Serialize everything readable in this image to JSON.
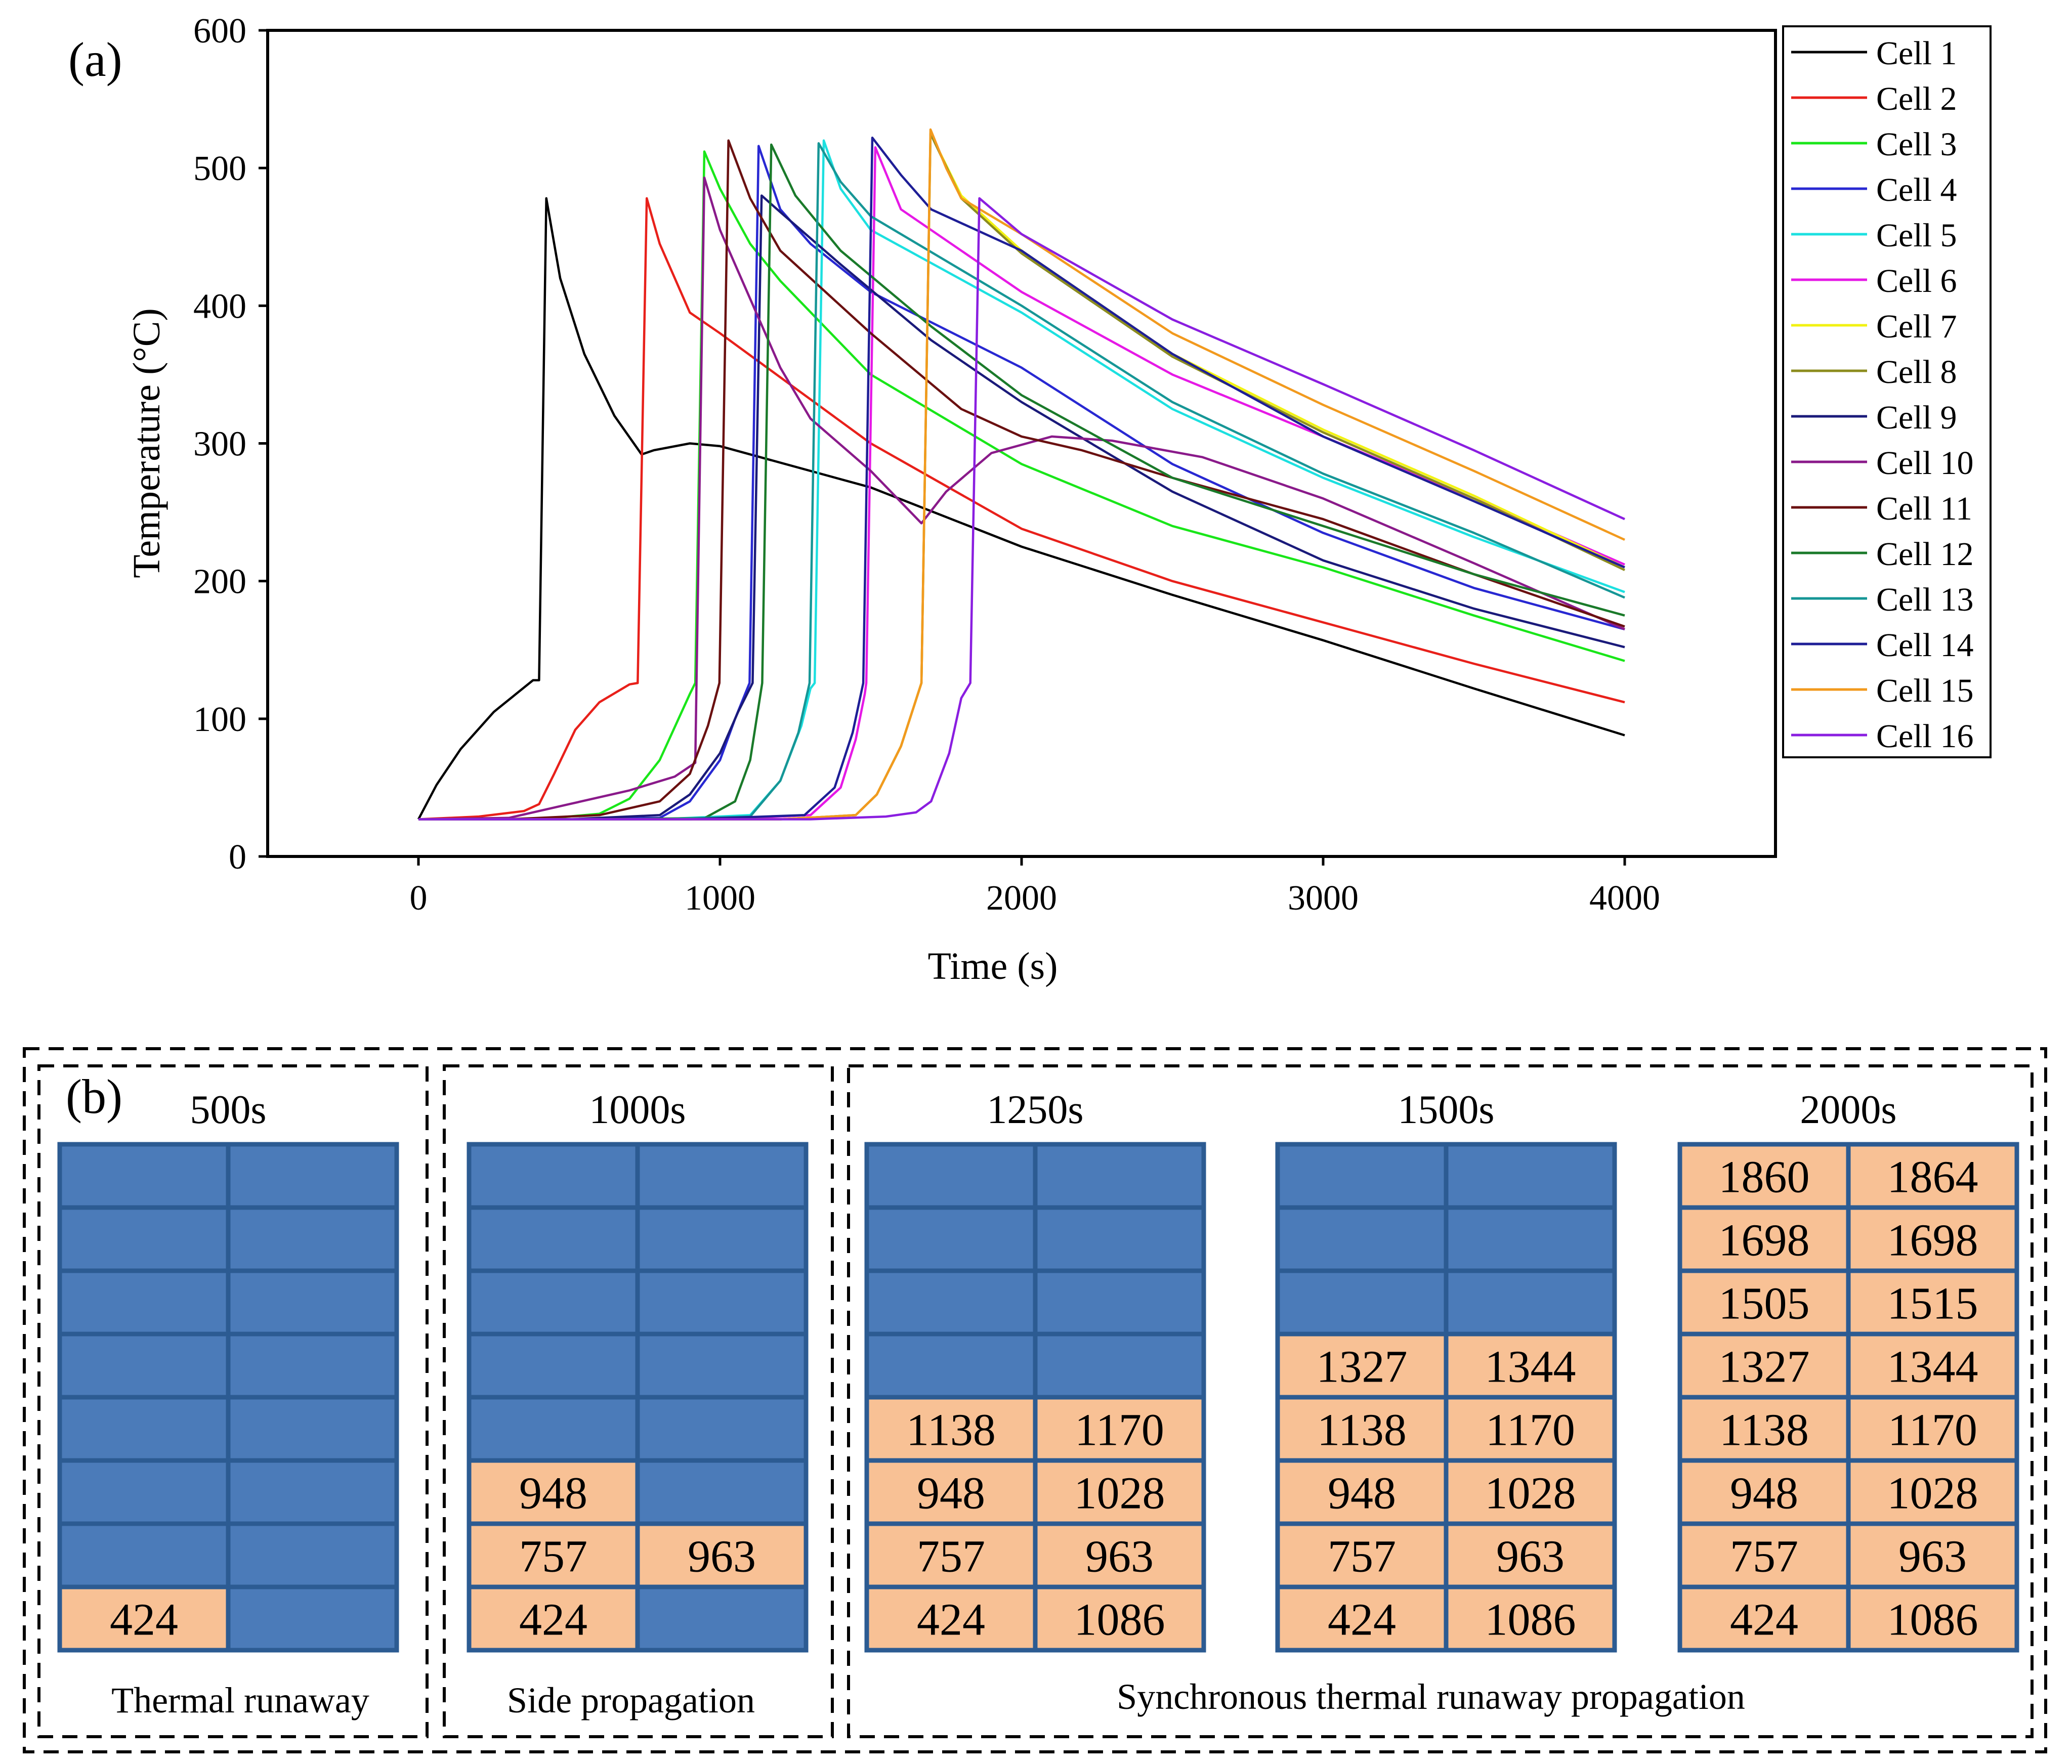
{
  "panel_a_label": "(a)",
  "panel_b_label": "(b)",
  "chart_data": {
    "type": "line",
    "title": "",
    "xlabel": "Time (s)",
    "ylabel": "Temperature (°C)",
    "xlim": [
      -500,
      4500
    ],
    "ylim": [
      0,
      600
    ],
    "xticks": [
      0,
      1000,
      2000,
      3000,
      4000
    ],
    "yticks": [
      0,
      100,
      200,
      300,
      400,
      500,
      600
    ],
    "grid": false,
    "legend_position": "right",
    "series": [
      {
        "name": "Cell 1",
        "color": "#000000",
        "points": [
          [
            0,
            27
          ],
          [
            60,
            52
          ],
          [
            140,
            78
          ],
          [
            250,
            105
          ],
          [
            380,
            128
          ],
          [
            400,
            128
          ],
          [
            424,
            478
          ],
          [
            470,
            420
          ],
          [
            550,
            365
          ],
          [
            650,
            320
          ],
          [
            740,
            292
          ],
          [
            780,
            295
          ],
          [
            900,
            300
          ],
          [
            1000,
            298
          ],
          [
            1500,
            268
          ],
          [
            2000,
            225
          ],
          [
            2500,
            190
          ],
          [
            3000,
            157
          ],
          [
            3500,
            122
          ],
          [
            4000,
            88
          ]
        ]
      },
      {
        "name": "Cell 2",
        "color": "#e8201a",
        "points": [
          [
            0,
            27
          ],
          [
            200,
            29
          ],
          [
            350,
            33
          ],
          [
            400,
            38
          ],
          [
            450,
            60
          ],
          [
            520,
            92
          ],
          [
            600,
            112
          ],
          [
            700,
            125
          ],
          [
            727,
            126
          ],
          [
            757,
            478
          ],
          [
            800,
            445
          ],
          [
            900,
            395
          ],
          [
            1000,
            380
          ],
          [
            1500,
            300
          ],
          [
            2000,
            238
          ],
          [
            2500,
            200
          ],
          [
            3000,
            170
          ],
          [
            3500,
            140
          ],
          [
            4000,
            112
          ]
        ]
      },
      {
        "name": "Cell 3",
        "color": "#19e619",
        "points": [
          [
            0,
            27
          ],
          [
            400,
            27
          ],
          [
            600,
            31
          ],
          [
            700,
            42
          ],
          [
            800,
            70
          ],
          [
            900,
            118
          ],
          [
            918,
            126
          ],
          [
            948,
            512
          ],
          [
            1000,
            485
          ],
          [
            1100,
            445
          ],
          [
            1200,
            418
          ],
          [
            1500,
            350
          ],
          [
            2000,
            285
          ],
          [
            2500,
            240
          ],
          [
            3000,
            210
          ],
          [
            3500,
            175
          ],
          [
            4000,
            142
          ]
        ]
      },
      {
        "name": "Cell 4",
        "color": "#2828d2",
        "points": [
          [
            0,
            27
          ],
          [
            500,
            27
          ],
          [
            800,
            28
          ],
          [
            900,
            40
          ],
          [
            1000,
            70
          ],
          [
            1050,
            100
          ],
          [
            1098,
            126
          ],
          [
            1128,
            516
          ],
          [
            1200,
            470
          ],
          [
            1300,
            445
          ],
          [
            1500,
            410
          ],
          [
            2000,
            355
          ],
          [
            2500,
            285
          ],
          [
            3000,
            235
          ],
          [
            3500,
            195
          ],
          [
            4000,
            165
          ]
        ]
      },
      {
        "name": "Cell 5",
        "color": "#1ce0e0",
        "points": [
          [
            0,
            27
          ],
          [
            800,
            27
          ],
          [
            1100,
            30
          ],
          [
            1200,
            55
          ],
          [
            1270,
            95
          ],
          [
            1300,
            122
          ],
          [
            1314,
            126
          ],
          [
            1344,
            520
          ],
          [
            1400,
            485
          ],
          [
            1500,
            455
          ],
          [
            2000,
            395
          ],
          [
            2500,
            325
          ],
          [
            3000,
            275
          ],
          [
            3500,
            232
          ],
          [
            4000,
            192
          ]
        ]
      },
      {
        "name": "Cell 6",
        "color": "#e619e6",
        "points": [
          [
            0,
            27
          ],
          [
            1000,
            27
          ],
          [
            1300,
            30
          ],
          [
            1400,
            50
          ],
          [
            1450,
            85
          ],
          [
            1480,
            118
          ],
          [
            1485,
            126
          ],
          [
            1515,
            515
          ],
          [
            1600,
            470
          ],
          [
            2000,
            410
          ],
          [
            2500,
            350
          ],
          [
            3000,
            305
          ],
          [
            3500,
            260
          ],
          [
            4000,
            212
          ]
        ]
      },
      {
        "name": "Cell 7",
        "color": "#f2f212",
        "points": [
          [
            0,
            27
          ],
          [
            1200,
            27
          ],
          [
            1450,
            30
          ],
          [
            1520,
            45
          ],
          [
            1600,
            80
          ],
          [
            1668,
            126
          ],
          [
            1698,
            525
          ],
          [
            1800,
            480
          ],
          [
            2000,
            440
          ],
          [
            2500,
            365
          ],
          [
            3000,
            310
          ],
          [
            3500,
            262
          ],
          [
            4000,
            210
          ]
        ]
      },
      {
        "name": "Cell 8",
        "color": "#8c8c1e",
        "points": [
          [
            0,
            27
          ],
          [
            1200,
            27
          ],
          [
            1450,
            30
          ],
          [
            1520,
            45
          ],
          [
            1600,
            80
          ],
          [
            1668,
            126
          ],
          [
            1698,
            525
          ],
          [
            1800,
            478
          ],
          [
            2000,
            438
          ],
          [
            2500,
            363
          ],
          [
            3000,
            308
          ],
          [
            3500,
            260
          ],
          [
            4000,
            208
          ]
        ]
      },
      {
        "name": "Cell 9",
        "color": "#1a1a7a",
        "points": [
          [
            0,
            27
          ],
          [
            500,
            27
          ],
          [
            800,
            30
          ],
          [
            900,
            45
          ],
          [
            1000,
            75
          ],
          [
            1060,
            105
          ],
          [
            1108,
            126
          ],
          [
            1138,
            480
          ],
          [
            1200,
            468
          ],
          [
            1400,
            430
          ],
          [
            1700,
            375
          ],
          [
            2000,
            330
          ],
          [
            2500,
            265
          ],
          [
            3000,
            215
          ],
          [
            3500,
            180
          ],
          [
            4000,
            152
          ]
        ]
      },
      {
        "name": "Cell 10",
        "color": "#8a1a8a",
        "points": [
          [
            0,
            27
          ],
          [
            300,
            28
          ],
          [
            500,
            38
          ],
          [
            700,
            48
          ],
          [
            850,
            58
          ],
          [
            918,
            68
          ],
          [
            948,
            493
          ],
          [
            1000,
            455
          ],
          [
            1100,
            405
          ],
          [
            1200,
            355
          ],
          [
            1300,
            318
          ],
          [
            1500,
            280
          ],
          [
            1668,
            242
          ],
          [
            1750,
            265
          ],
          [
            1900,
            293
          ],
          [
            2100,
            305
          ],
          [
            2300,
            302
          ],
          [
            2600,
            290
          ],
          [
            3000,
            260
          ],
          [
            3500,
            213
          ],
          [
            4000,
            165
          ]
        ]
      },
      {
        "name": "Cell 11",
        "color": "#6a1010",
        "points": [
          [
            0,
            27
          ],
          [
            300,
            27
          ],
          [
            600,
            30
          ],
          [
            800,
            40
          ],
          [
            900,
            60
          ],
          [
            960,
            95
          ],
          [
            998,
            126
          ],
          [
            1028,
            520
          ],
          [
            1100,
            478
          ],
          [
            1200,
            440
          ],
          [
            1500,
            380
          ],
          [
            1800,
            325
          ],
          [
            2000,
            305
          ],
          [
            2200,
            295
          ],
          [
            2500,
            275
          ],
          [
            3000,
            245
          ],
          [
            3500,
            205
          ],
          [
            4000,
            167
          ]
        ]
      },
      {
        "name": "Cell 12",
        "color": "#1a7a2a",
        "points": [
          [
            0,
            27
          ],
          [
            700,
            27
          ],
          [
            950,
            28
          ],
          [
            1050,
            40
          ],
          [
            1100,
            70
          ],
          [
            1140,
            126
          ],
          [
            1170,
            517
          ],
          [
            1250,
            480
          ],
          [
            1400,
            440
          ],
          [
            1700,
            385
          ],
          [
            2000,
            335
          ],
          [
            2500,
            275
          ],
          [
            3000,
            240
          ],
          [
            3500,
            205
          ],
          [
            4000,
            175
          ]
        ]
      },
      {
        "name": "Cell 13",
        "color": "#169696",
        "points": [
          [
            0,
            27
          ],
          [
            800,
            27
          ],
          [
            1100,
            29
          ],
          [
            1200,
            55
          ],
          [
            1260,
            90
          ],
          [
            1297,
            126
          ],
          [
            1327,
            518
          ],
          [
            1400,
            490
          ],
          [
            1500,
            465
          ],
          [
            2000,
            400
          ],
          [
            2500,
            330
          ],
          [
            3000,
            278
          ],
          [
            3500,
            235
          ],
          [
            4000,
            188
          ]
        ]
      },
      {
        "name": "Cell 14",
        "color": "#1e1e96",
        "points": [
          [
            0,
            27
          ],
          [
            900,
            27
          ],
          [
            1280,
            30
          ],
          [
            1380,
            50
          ],
          [
            1440,
            90
          ],
          [
            1475,
            126
          ],
          [
            1505,
            522
          ],
          [
            1600,
            495
          ],
          [
            1700,
            470
          ],
          [
            2000,
            440
          ],
          [
            2500,
            365
          ],
          [
            3000,
            305
          ],
          [
            3500,
            258
          ],
          [
            4000,
            210
          ]
        ]
      },
      {
        "name": "Cell 15",
        "color": "#f29a1e",
        "points": [
          [
            0,
            27
          ],
          [
            1200,
            27
          ],
          [
            1450,
            30
          ],
          [
            1520,
            45
          ],
          [
            1600,
            80
          ],
          [
            1668,
            126
          ],
          [
            1698,
            528
          ],
          [
            1750,
            500
          ],
          [
            1800,
            478
          ],
          [
            2000,
            452
          ],
          [
            2500,
            380
          ],
          [
            3000,
            328
          ],
          [
            3500,
            280
          ],
          [
            4000,
            230
          ]
        ]
      },
      {
        "name": "Cell 16",
        "color": "#8a1ee0",
        "points": [
          [
            0,
            27
          ],
          [
            1300,
            27
          ],
          [
            1550,
            29
          ],
          [
            1650,
            32
          ],
          [
            1700,
            40
          ],
          [
            1760,
            75
          ],
          [
            1800,
            115
          ],
          [
            1830,
            126
          ],
          [
            1860,
            478
          ],
          [
            2000,
            452
          ],
          [
            2500,
            390
          ],
          [
            3000,
            343
          ],
          [
            3500,
            295
          ],
          [
            4000,
            245
          ]
        ]
      }
    ]
  },
  "panel_b": {
    "groups": [
      {
        "caption": "Thermal runaway"
      },
      {
        "caption": "Side propagation"
      },
      {
        "caption": "Synchronous thermal runaway propagation"
      }
    ],
    "grids": [
      {
        "title": "500s",
        "rows": [
          [
            "",
            ""
          ],
          [
            "",
            ""
          ],
          [
            "",
            ""
          ],
          [
            "",
            ""
          ],
          [
            "",
            ""
          ],
          [
            "",
            ""
          ],
          [
            "",
            ""
          ],
          [
            "424",
            ""
          ]
        ]
      },
      {
        "title": "1000s",
        "rows": [
          [
            "",
            ""
          ],
          [
            "",
            ""
          ],
          [
            "",
            ""
          ],
          [
            "",
            ""
          ],
          [
            "",
            ""
          ],
          [
            "948",
            ""
          ],
          [
            "757",
            "963"
          ],
          [
            "424",
            ""
          ]
        ]
      },
      {
        "title": "1250s",
        "rows": [
          [
            "",
            ""
          ],
          [
            "",
            ""
          ],
          [
            "",
            ""
          ],
          [
            "",
            ""
          ],
          [
            "1138",
            "1170"
          ],
          [
            "948",
            "1028"
          ],
          [
            "757",
            "963"
          ],
          [
            "424",
            "1086"
          ]
        ]
      },
      {
        "title": "1500s",
        "rows": [
          [
            "",
            ""
          ],
          [
            "",
            ""
          ],
          [
            "",
            ""
          ],
          [
            "1327",
            "1344"
          ],
          [
            "1138",
            "1170"
          ],
          [
            "948",
            "1028"
          ],
          [
            "757",
            "963"
          ],
          [
            "424",
            "1086"
          ]
        ]
      },
      {
        "title": "2000s",
        "rows": [
          [
            "1860",
            "1864"
          ],
          [
            "1698",
            "1698"
          ],
          [
            "1505",
            "1515"
          ],
          [
            "1327",
            "1344"
          ],
          [
            "1138",
            "1170"
          ],
          [
            "948",
            "1028"
          ],
          [
            "757",
            "963"
          ],
          [
            "424",
            "1086"
          ]
        ]
      }
    ],
    "colors": {
      "blue_cell": "#4b7bb9",
      "orange_cell": "#f8c195",
      "cell_border": "#2c5b92"
    }
  }
}
